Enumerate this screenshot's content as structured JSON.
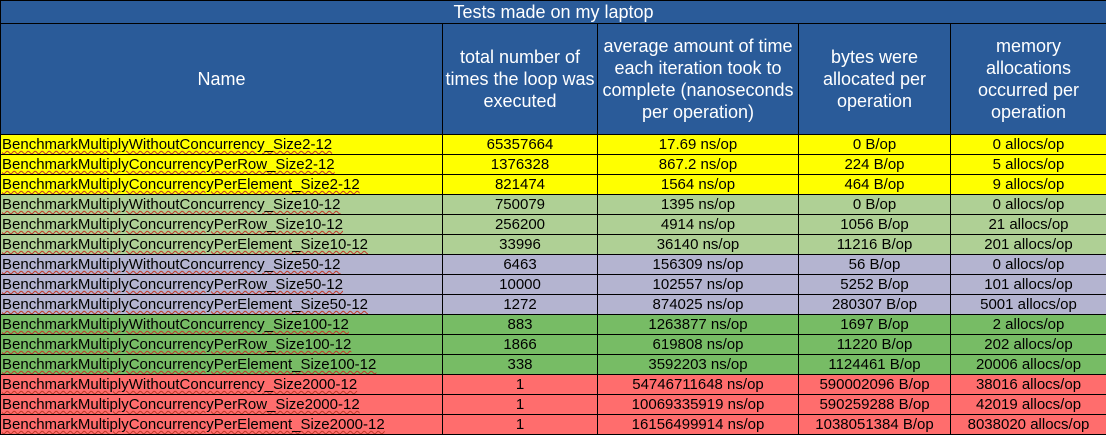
{
  "title": "Tests made on my laptop",
  "headers": {
    "name": "Name",
    "loops": "total number of times the loop was executed",
    "time": "average amount of time each iteration took to complete (nanoseconds per operation)",
    "bytes": "bytes were allocated per operation",
    "allocs": "memory allocations occurred per operation"
  },
  "colors": {
    "header": "#2a5b99",
    "size2": "#ffff00",
    "size10": "#afd095",
    "size50": "#b4b4d0",
    "size100": "#77bc65",
    "size2000": "#ff6d6d"
  },
  "rows": [
    {
      "name": "BenchmarkMultiplyWithoutConcurrency_Size2-12",
      "loops": "65357664",
      "time": "17.69 ns/op",
      "bytes": "0 B/op",
      "allocs": "0 allocs/op"
    },
    {
      "name": "BenchmarkMultiplyConcurrencyPerRow_Size2-12",
      "loops": "1376328",
      "time": "867.2 ns/op",
      "bytes": "224 B/op",
      "allocs": "5 allocs/op"
    },
    {
      "name": "BenchmarkMultiplyConcurrencyPerElement_Size2-12",
      "loops": "821474",
      "time": "1564 ns/op",
      "bytes": "464 B/op",
      "allocs": "9 allocs/op"
    },
    {
      "name": "BenchmarkMultiplyWithoutConcurrency_Size10-12",
      "loops": "750079",
      "time": "1395 ns/op",
      "bytes": "0 B/op",
      "allocs": "0 allocs/op"
    },
    {
      "name": "BenchmarkMultiplyConcurrencyPerRow_Size10-12",
      "loops": "256200",
      "time": "4914 ns/op",
      "bytes": "1056 B/op",
      "allocs": "21 allocs/op"
    },
    {
      "name": "BenchmarkMultiplyConcurrencyPerElement_Size10-12",
      "loops": "33996",
      "time": "36140 ns/op",
      "bytes": "11216 B/op",
      "allocs": "201 allocs/op"
    },
    {
      "name": "BenchmarkMultiplyWithoutConcurrency_Size50-12",
      "loops": "6463",
      "time": "156309 ns/op",
      "bytes": "56 B/op",
      "allocs": "0 allocs/op"
    },
    {
      "name": "BenchmarkMultiplyConcurrencyPerRow_Size50-12",
      "loops": "10000",
      "time": "102557 ns/op",
      "bytes": "5252 B/op",
      "allocs": "101 allocs/op"
    },
    {
      "name": "BenchmarkMultiplyConcurrencyPerElement_Size50-12",
      "loops": "1272",
      "time": "874025 ns/op",
      "bytes": "280307 B/op",
      "allocs": "5001 allocs/op"
    },
    {
      "name": "BenchmarkMultiplyWithoutConcurrency_Size100-12",
      "loops": "883",
      "time": "1263877 ns/op",
      "bytes": "1697 B/op",
      "allocs": "2 allocs/op"
    },
    {
      "name": "BenchmarkMultiplyConcurrencyPerRow_Size100-12",
      "loops": "1866",
      "time": "619808 ns/op",
      "bytes": "11220 B/op",
      "allocs": "202 allocs/op"
    },
    {
      "name": "BenchmarkMultiplyConcurrencyPerElement_Size100-12",
      "loops": "338",
      "time": "3592203 ns/op",
      "bytes": "1124461 B/op",
      "allocs": "20006 allocs/op"
    },
    {
      "name": "BenchmarkMultiplyWithoutConcurrency_Size2000-12",
      "loops": "1",
      "time": "54746711648 ns/op",
      "bytes": "590002096 B/op",
      "allocs": "38016 allocs/op"
    },
    {
      "name": "BenchmarkMultiplyConcurrencyPerRow_Size2000-12",
      "loops": "1",
      "time": "10069335919 ns/op",
      "bytes": "590259288 B/op",
      "allocs": "42019 allocs/op"
    },
    {
      "name": "BenchmarkMultiplyConcurrencyPerElement_Size2000-12",
      "loops": "1",
      "time": "16156499914 ns/op",
      "bytes": "1038051384 B/op",
      "allocs": "8038020 allocs/op"
    }
  ]
}
